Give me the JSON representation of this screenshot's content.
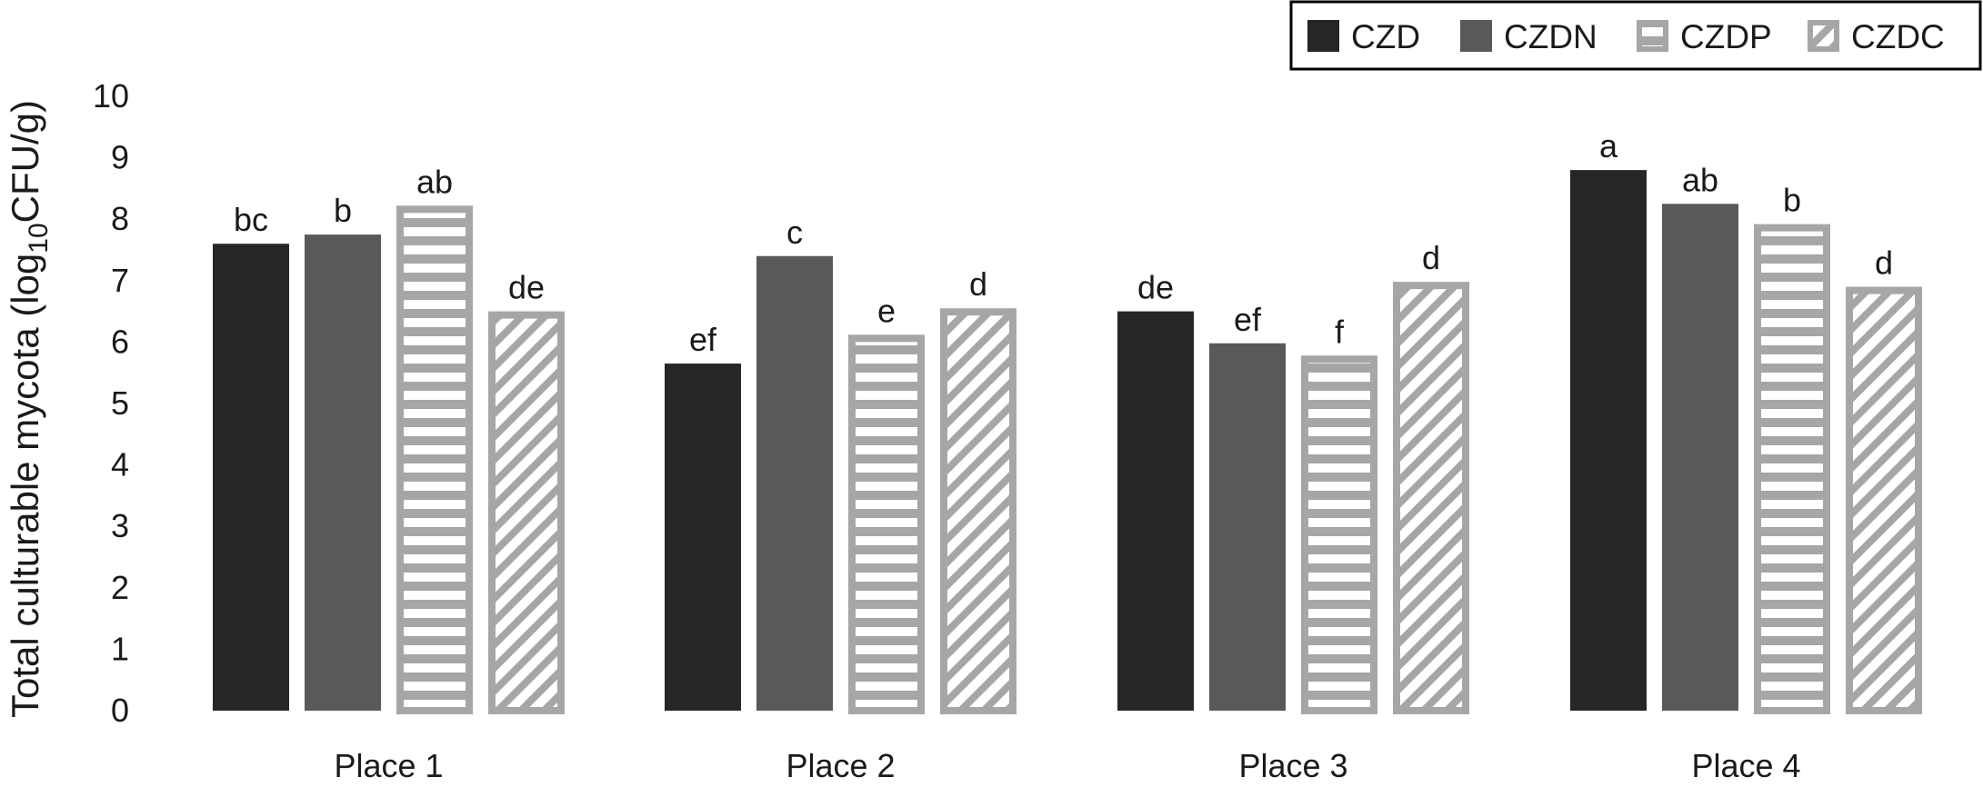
{
  "chart_data": {
    "type": "bar",
    "title": "",
    "ylabel": "Total culturable mycota  (log",
    "ylabel_sub": "10",
    "ylabel_end": "CFU/g)",
    "xlabel": "",
    "ylim": [
      0,
      10
    ],
    "yticks": [
      "0",
      "1",
      "2",
      "3",
      "4",
      "5",
      "6",
      "7",
      "8",
      "9",
      "10"
    ],
    "grid": false,
    "legend_position": "top-right",
    "categories": [
      "Place 1",
      "Place 2",
      "Place 3",
      "Place 4"
    ],
    "series": [
      {
        "name": "CZD",
        "pattern": "solid-dark",
        "color": "#262626",
        "values": [
          7.6,
          5.65,
          6.5,
          8.8
        ],
        "labels": [
          "bc",
          "ef",
          "de",
          "a"
        ]
      },
      {
        "name": "CZDN",
        "pattern": "solid-medium",
        "color": "#595959",
        "values": [
          7.75,
          7.4,
          5.98,
          8.25
        ],
        "labels": [
          "b",
          "c",
          "ef",
          "ab"
        ]
      },
      {
        "name": "CZDP",
        "pattern": "horizontal-stripes",
        "color": "#a6a6a6",
        "values": [
          8.22,
          6.12,
          5.78,
          7.92
        ],
        "labels": [
          "ab",
          "e",
          "f",
          "b"
        ]
      },
      {
        "name": "CZDC",
        "pattern": "diagonal-stripes",
        "color": "#a6a6a6",
        "values": [
          6.5,
          6.55,
          6.98,
          6.9
        ],
        "labels": [
          "de",
          "d",
          "d",
          "d"
        ]
      }
    ]
  }
}
